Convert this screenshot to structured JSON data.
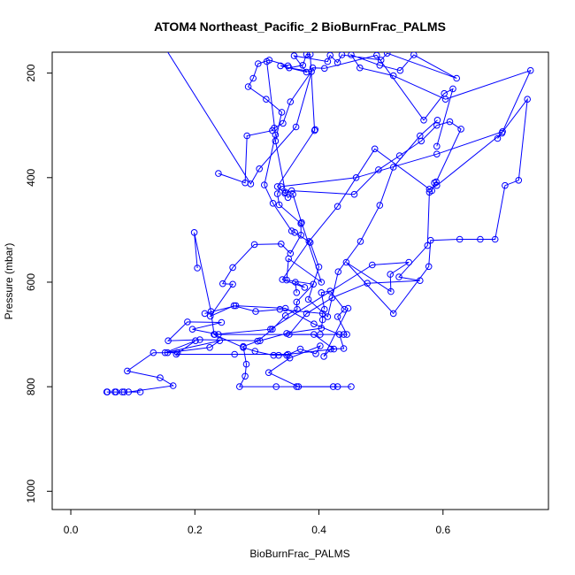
{
  "chart_data": {
    "type": "line",
    "title": "ATOM4 Northeast_Pacific_2 BioBurnFrac_PALMS",
    "xlabel": "BioBurnFrac_PALMS",
    "ylabel": "Pressure (mbar)",
    "xlim": [
      -0.03,
      0.77
    ],
    "ylim": [
      1035,
      160
    ],
    "y_inverted": true,
    "x_ticks": [
      "0.0",
      "0.2",
      "0.4",
      "0.6"
    ],
    "y_ticks": [
      "200",
      "400",
      "600",
      "800",
      "1000"
    ],
    "grid": false,
    "color": "#0000ff",
    "series": [
      {
        "points": [
          [
            0.059,
            810
          ],
          [
            0.073,
            810
          ],
          [
            0.086,
            810
          ],
          [
            0.112,
            810
          ],
          [
            0.058,
            810
          ],
          [
            0.071,
            810
          ],
          [
            0.083,
            810
          ],
          [
            0.093,
            810
          ],
          [
            0.165,
            798
          ],
          [
            0.144,
            783
          ],
          [
            0.091,
            770
          ],
          [
            0.133,
            735
          ],
          [
            0.172,
            735
          ],
          [
            0.156,
            735
          ],
          [
            0.224,
            725
          ],
          [
            0.24,
            712
          ],
          [
            0.152,
            735
          ],
          [
            0.201,
            712
          ],
          [
            0.17,
            738
          ],
          [
            0.264,
            738
          ],
          [
            0.35,
            738
          ],
          [
            0.424,
            728
          ],
          [
            0.392,
            700
          ],
          [
            0.238,
            700
          ],
          [
            0.196,
            690
          ],
          [
            0.243,
            677
          ],
          [
            0.188,
            676
          ],
          [
            0.157,
            712
          ],
          [
            0.208,
            710
          ],
          [
            0.305,
            712
          ],
          [
            0.348,
            698
          ],
          [
            0.404,
            688
          ],
          [
            0.406,
            672
          ],
          [
            0.406,
            660
          ],
          [
            0.337,
            652
          ],
          [
            0.298,
            656
          ],
          [
            0.263,
            645
          ],
          [
            0.225,
            665
          ],
          [
            0.261,
            604
          ],
          [
            0.245,
            603
          ],
          [
            0.261,
            572
          ],
          [
            0.296,
            528
          ],
          [
            0.339,
            527
          ],
          [
            0.354,
            545
          ],
          [
            0.371,
            510
          ],
          [
            0.371,
            488
          ],
          [
            0.336,
            452
          ],
          [
            0.333,
            431
          ],
          [
            0.339,
            417
          ],
          [
            0.46,
            400
          ],
          [
            0.59,
            355
          ],
          [
            0.696,
            312
          ],
          [
            0.741,
            195
          ],
          [
            0.604,
            250
          ],
          [
            0.52,
            205
          ],
          [
            0.466,
            190
          ],
          [
            0.452,
            165
          ],
          [
            0.498,
            185
          ],
          [
            0.531,
            195
          ],
          [
            0.553,
            165
          ],
          [
            0.622,
            210
          ],
          [
            0.51,
            162
          ],
          [
            0.5,
            175
          ],
          [
            0.437,
            165
          ],
          [
            0.43,
            180
          ],
          [
            0.418,
            166
          ],
          [
            0.414,
            178
          ],
          [
            0.36,
            167
          ],
          [
            0.38,
            198
          ],
          [
            0.338,
            186
          ],
          [
            0.35,
            186
          ],
          [
            0.32,
            175
          ],
          [
            0.302,
            182
          ],
          [
            0.294,
            210
          ],
          [
            0.286,
            226
          ],
          [
            0.315,
            250
          ],
          [
            0.34,
            275
          ],
          [
            0.33,
            330
          ],
          [
            0.346,
            428
          ],
          [
            0.35,
            438
          ],
          [
            0.358,
            432
          ],
          [
            0.372,
            486
          ],
          [
            0.404,
            600
          ],
          [
            0.351,
            555
          ],
          [
            0.348,
            596
          ],
          [
            0.391,
            604
          ],
          [
            0.364,
            638
          ],
          [
            0.365,
            652
          ],
          [
            0.346,
            664
          ],
          [
            0.325,
            690
          ],
          [
            0.301,
            713
          ],
          [
            0.278,
            723
          ],
          [
            0.283,
            757
          ],
          [
            0.281,
            780
          ],
          [
            0.272,
            800
          ],
          [
            0.331,
            800
          ],
          [
            0.364,
            800
          ],
          [
            0.423,
            800
          ],
          [
            0.452,
            800
          ]
        ]
      },
      {
        "points": [
          [
            0.204,
            573
          ],
          [
            0.199,
            505
          ],
          [
            0.226,
            656
          ],
          [
            0.231,
            700
          ],
          [
            0.278,
            725
          ],
          [
            0.297,
            732
          ],
          [
            0.327,
            740
          ],
          [
            0.335,
            740
          ],
          [
            0.348,
            740
          ],
          [
            0.37,
            728
          ],
          [
            0.395,
            737
          ],
          [
            0.402,
            722
          ],
          [
            0.353,
            745
          ],
          [
            0.319,
            773
          ],
          [
            0.367,
            800
          ],
          [
            0.43,
            800
          ]
        ]
      },
      {
        "points": [
          [
            0.232,
            700
          ],
          [
            0.322,
            690
          ],
          [
            0.486,
            567
          ],
          [
            0.545,
            562
          ],
          [
            0.515,
            585
          ],
          [
            0.516,
            618
          ],
          [
            0.444,
            562
          ],
          [
            0.52,
            660
          ],
          [
            0.577,
            570
          ],
          [
            0.58,
            520
          ],
          [
            0.627,
            518
          ],
          [
            0.66,
            518
          ],
          [
            0.684,
            518
          ],
          [
            0.7,
            415
          ],
          [
            0.722,
            405
          ],
          [
            0.736,
            250
          ],
          [
            0.688,
            325
          ],
          [
            0.695,
            315
          ],
          [
            0.59,
            415
          ],
          [
            0.578,
            422
          ],
          [
            0.49,
            345
          ],
          [
            0.43,
            455
          ],
          [
            0.384,
            522
          ],
          [
            0.341,
            595
          ],
          [
            0.377,
            610
          ],
          [
            0.362,
            600
          ],
          [
            0.364,
            620
          ]
        ]
      },
      {
        "points": [
          [
            0.238,
            392
          ],
          [
            0.281,
            410
          ],
          [
            0.284,
            320
          ],
          [
            0.325,
            310
          ],
          [
            0.328,
            305
          ],
          [
            0.342,
            296
          ],
          [
            0.354,
            255
          ],
          [
            0.388,
            197
          ],
          [
            0.352,
            190
          ],
          [
            0.374,
            185
          ],
          [
            0.38,
            164
          ],
          [
            0.386,
            164
          ],
          [
            0.393,
            310
          ],
          [
            0.394,
            308
          ],
          [
            0.333,
            417
          ],
          [
            0.345,
            430
          ],
          [
            0.356,
            425
          ],
          [
            0.457,
            432
          ],
          [
            0.496,
            385
          ],
          [
            0.53,
            358
          ],
          [
            0.565,
            330
          ],
          [
            0.59,
            300
          ],
          [
            0.611,
            293
          ],
          [
            0.629,
            307
          ],
          [
            0.589,
            408
          ],
          [
            0.586,
            410
          ],
          [
            0.582,
            425
          ],
          [
            0.578,
            428
          ],
          [
            0.575,
            530
          ],
          [
            0.529,
            590
          ],
          [
            0.563,
            597
          ],
          [
            0.478,
            602
          ],
          [
            0.421,
            630
          ],
          [
            0.38,
            660
          ],
          [
            0.352,
            700
          ],
          [
            0.402,
            700
          ],
          [
            0.44,
            700
          ],
          [
            0.445,
            700
          ],
          [
            0.43,
            666
          ],
          [
            0.441,
            652
          ],
          [
            0.418,
            617
          ],
          [
            0.404,
            620
          ],
          [
            0.409,
            652
          ]
        ]
      },
      {
        "points": [
          [
            0.15,
            148
          ],
          [
            0.29,
            412
          ],
          [
            0.304,
            383
          ],
          [
            0.363,
            303
          ],
          [
            0.39,
            190
          ],
          [
            0.409,
            191
          ],
          [
            0.493,
            166
          ],
          [
            0.569,
            290
          ],
          [
            0.602,
            239
          ],
          [
            0.616,
            230
          ],
          [
            0.59,
            340
          ]
        ]
      },
      {
        "points": [
          [
            0.216,
            660
          ],
          [
            0.266,
            645
          ],
          [
            0.346,
            650
          ],
          [
            0.392,
            680
          ],
          [
            0.433,
            700
          ],
          [
            0.44,
            727
          ],
          [
            0.419,
            728
          ],
          [
            0.408,
            742
          ],
          [
            0.447,
            650
          ]
        ]
      },
      {
        "points": [
          [
            0.316,
            178
          ],
          [
            0.33,
            318
          ],
          [
            0.312,
            414
          ],
          [
            0.326,
            449
          ],
          [
            0.356,
            502
          ],
          [
            0.361,
            505
          ],
          [
            0.386,
            524
          ],
          [
            0.4,
            571
          ],
          [
            0.383,
            633
          ],
          [
            0.414,
            666
          ],
          [
            0.431,
            580
          ],
          [
            0.467,
            522
          ],
          [
            0.498,
            453
          ],
          [
            0.52,
            380
          ],
          [
            0.563,
            320
          ],
          [
            0.591,
            290
          ]
        ]
      }
    ]
  }
}
